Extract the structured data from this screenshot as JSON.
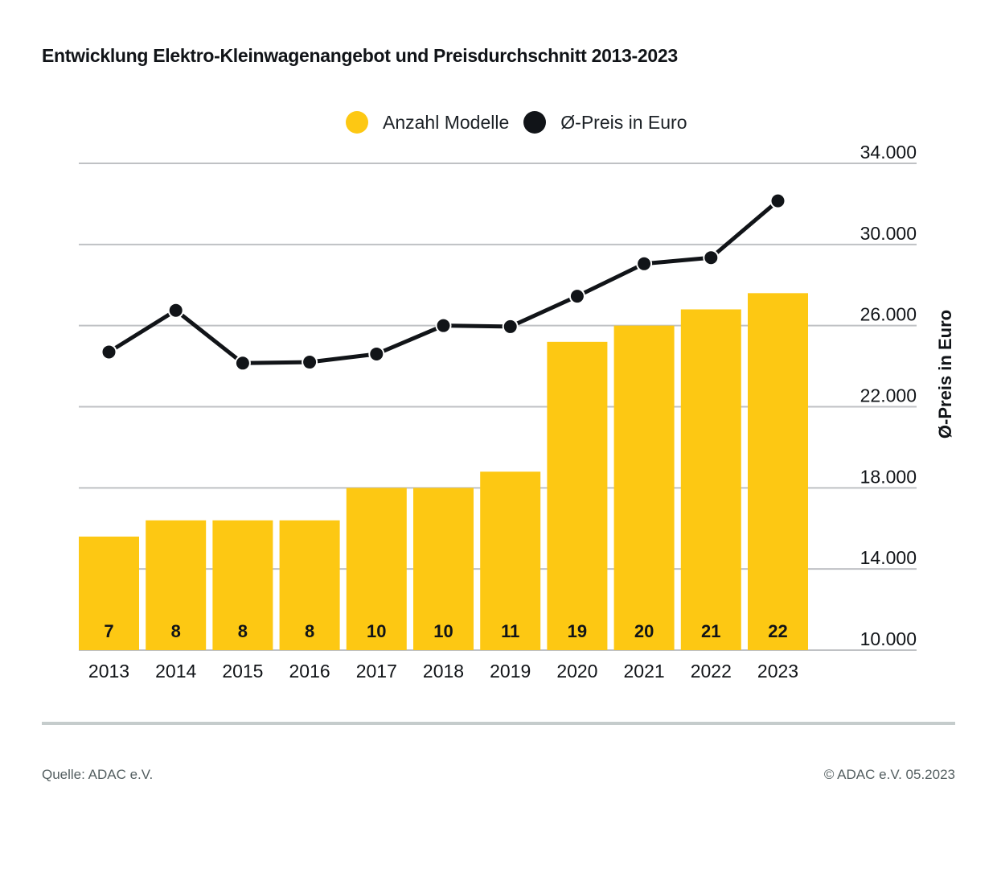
{
  "footer": {
    "source": "Quelle: ADAC e.V.",
    "copyright": "© ADAC e.V. 05.2023"
  },
  "colors": {
    "bar": "#fdc813",
    "line": "#111418",
    "grid": "#bfc1c4",
    "text": "#111418"
  },
  "chart_data": {
    "type": "bar+line",
    "title": "Entwicklung Elektro-Kleinwagenangebot und Preisdurchschnitt 2013-2023",
    "categories": [
      "2013",
      "2014",
      "2015",
      "2016",
      "2017",
      "2018",
      "2019",
      "2020",
      "2021",
      "2022",
      "2023"
    ],
    "series": [
      {
        "name": "Anzahl Modelle",
        "type": "bar",
        "values": [
          7,
          8,
          8,
          8,
          10,
          10,
          11,
          19,
          20,
          21,
          22
        ],
        "data_labels": [
          "7",
          "8",
          "8",
          "8",
          "10",
          "10",
          "11",
          "19",
          "20",
          "21",
          "22"
        ]
      },
      {
        "name": "Ø-Preis in Euro",
        "type": "line",
        "axis": "right",
        "values": [
          24700,
          26750,
          24150,
          24200,
          24600,
          26000,
          25950,
          27450,
          29050,
          29350,
          32150
        ]
      }
    ],
    "legend": [
      "Anzahl Modelle",
      "Ø-Preis in Euro"
    ],
    "legend_position": "top-center",
    "xlabel": "",
    "ylabel_right": "Ø-Preis in Euro",
    "ylim_right": [
      10000,
      34000
    ],
    "yticks_right": [
      10000,
      14000,
      18000,
      22000,
      26000,
      30000,
      34000
    ],
    "ytick_labels_right": [
      "10.000",
      "14.000",
      "18.000",
      "22.000",
      "26.000",
      "30.000",
      "34.000"
    ],
    "bar_ylim": [
      0,
      30
    ],
    "grid": true
  }
}
